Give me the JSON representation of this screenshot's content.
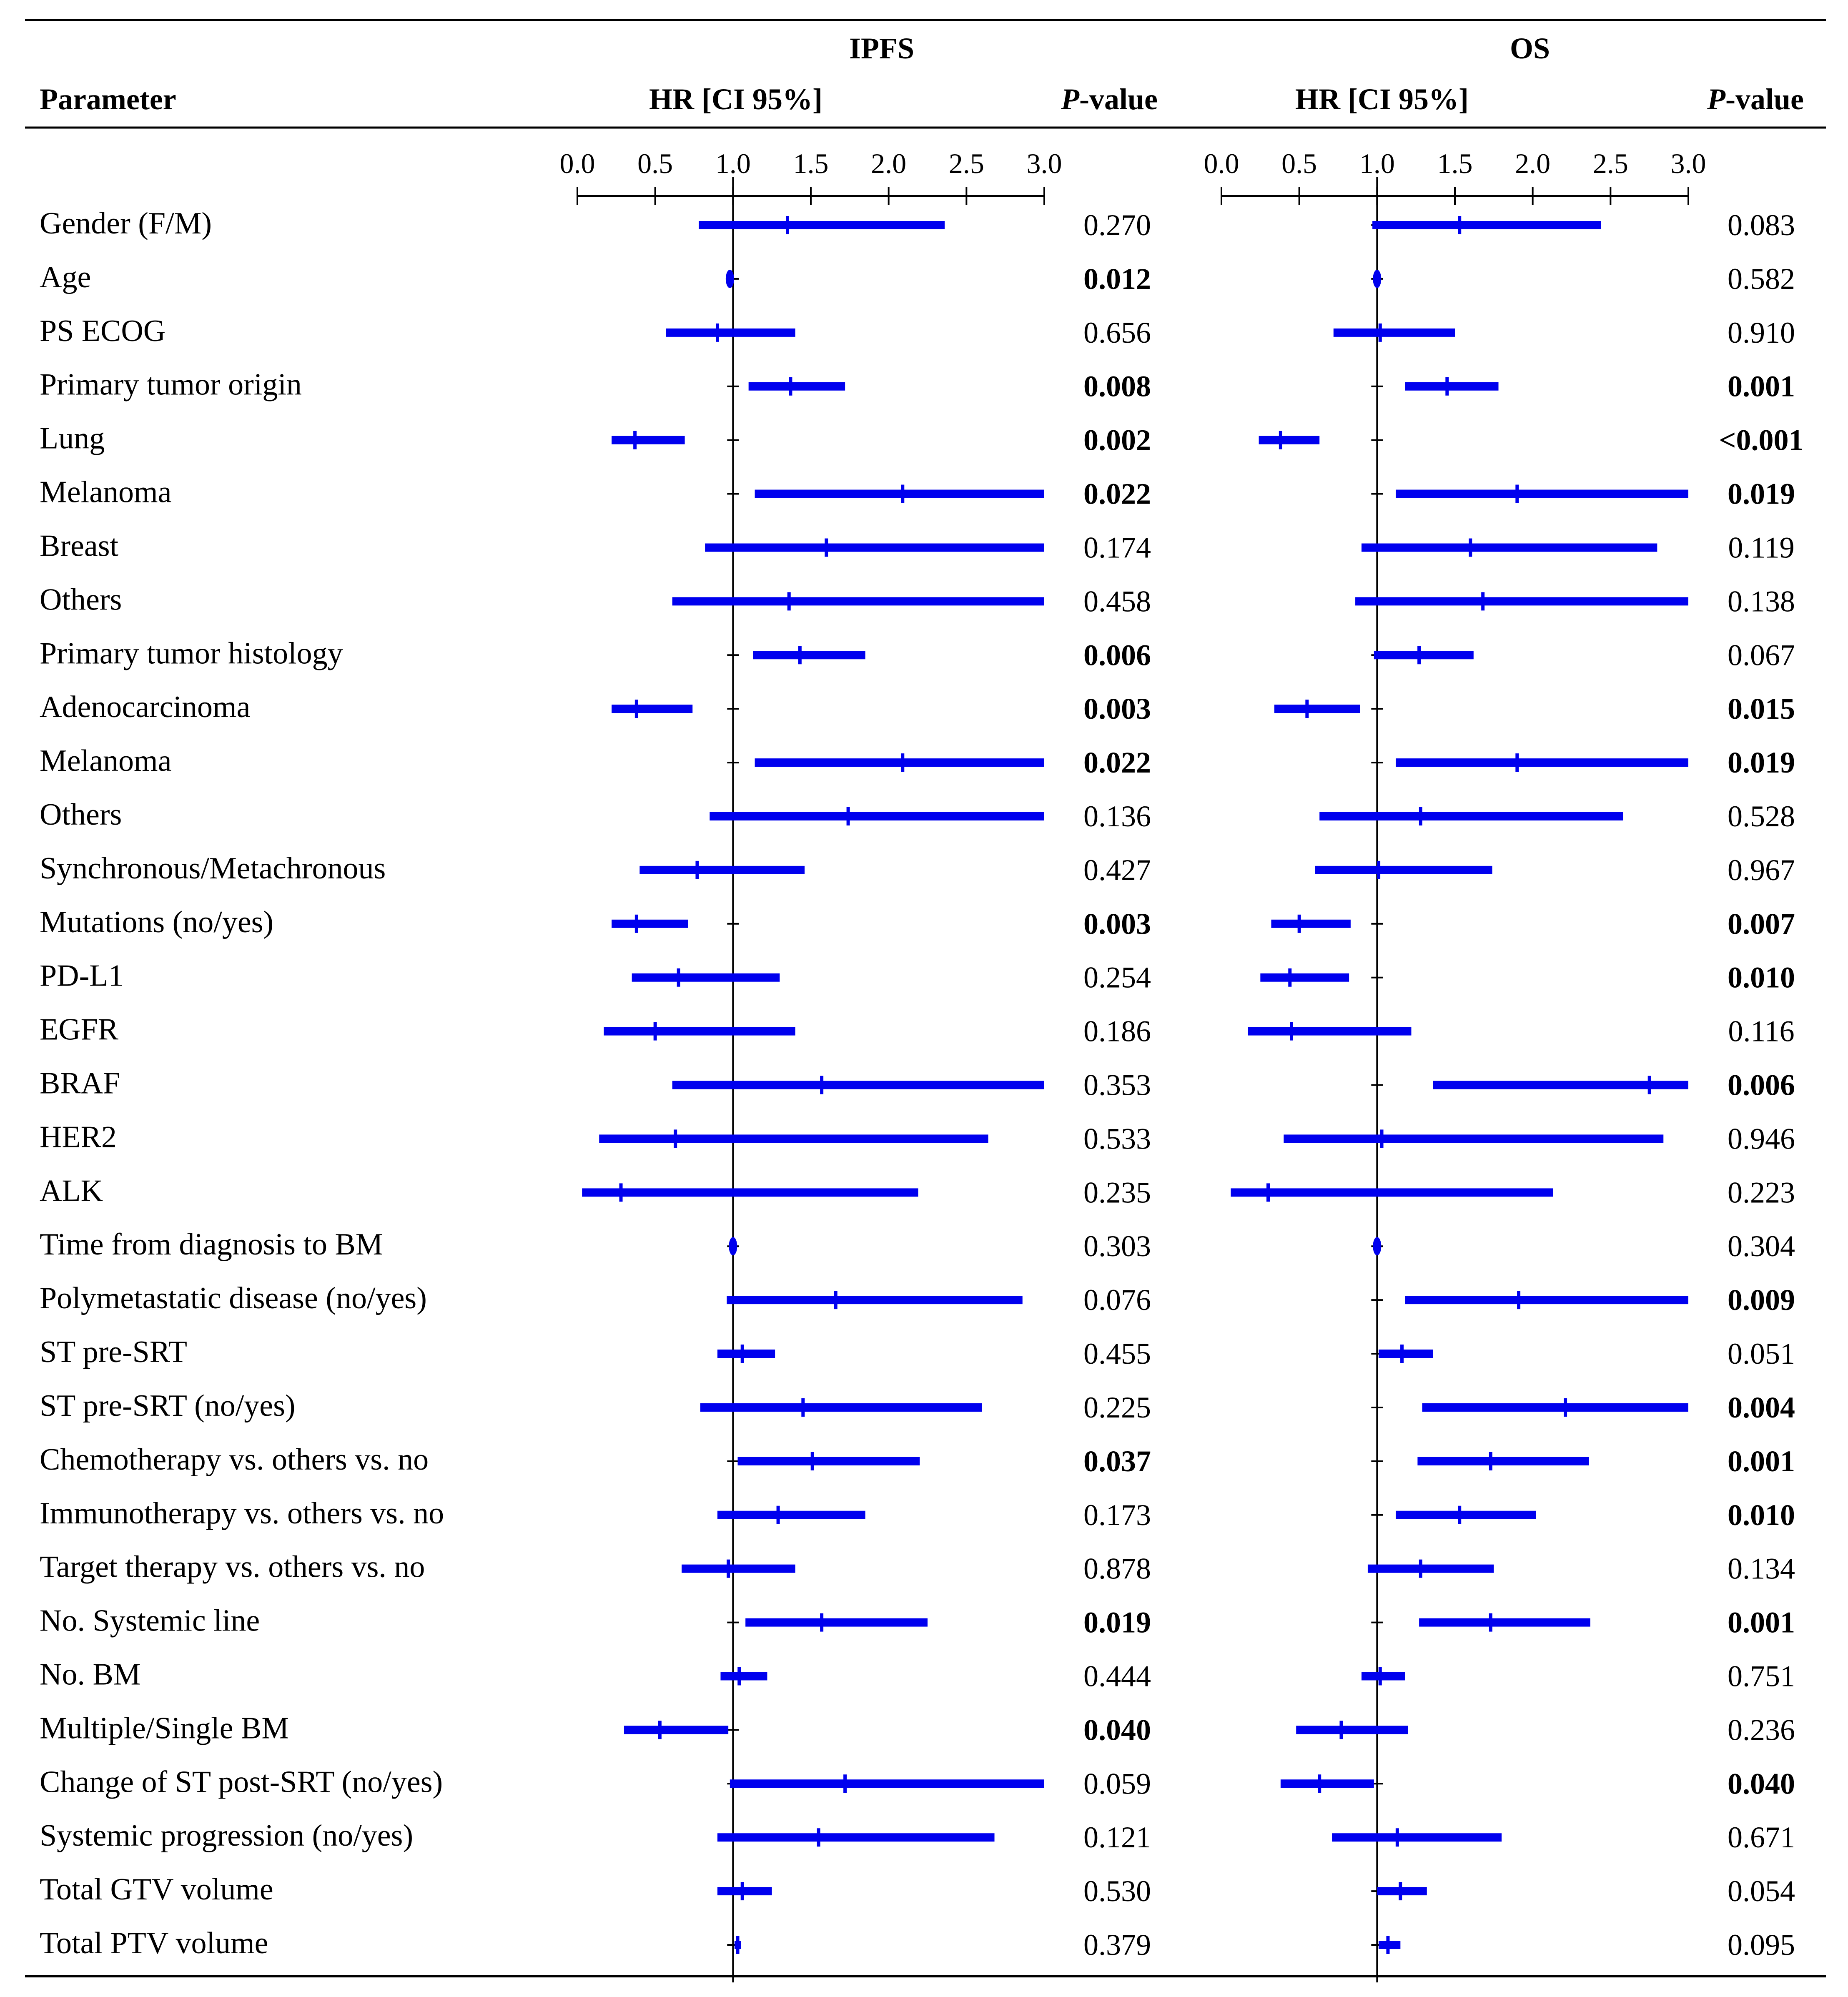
{
  "headers": {
    "parameter": "Parameter",
    "ipfs": "IPFS",
    "os": "OS",
    "hr_ci": "HR [CI 95%]",
    "p_italic": "P",
    "p_rest": "-value"
  },
  "colors": {
    "bar": "#0000ee",
    "axis": "#000000",
    "rule": "#000000"
  },
  "chart_data": {
    "type": "forest",
    "axis": {
      "min": 0.0,
      "max": 3.0,
      "ticks": [
        "0.0",
        "0.5",
        "1.0",
        "1.5",
        "2.0",
        "2.5",
        "3.0"
      ],
      "reference_line": 1.0
    },
    "panels": [
      "IPFS",
      "OS"
    ],
    "rows": [
      {
        "label": "Gender (F/M)",
        "ipfs": {
          "hr": 1.35,
          "lo": 0.78,
          "hi": 2.36,
          "p": "0.270",
          "bold": false
        },
        "os": {
          "hr": 1.53,
          "lo": 0.97,
          "hi": 2.44,
          "p": "0.083",
          "bold": false
        }
      },
      {
        "label": "Age",
        "ipfs": {
          "hr": 0.98,
          "lo": 0.97,
          "hi": 0.99,
          "p": "0.012",
          "bold": true
        },
        "os": {
          "hr": 1.0,
          "lo": 0.99,
          "hi": 1.01,
          "p": "0.582",
          "bold": false
        }
      },
      {
        "label": "PS ECOG",
        "ipfs": {
          "hr": 0.9,
          "lo": 0.57,
          "hi": 1.4,
          "p": "0.656",
          "bold": false
        },
        "os": {
          "hr": 1.02,
          "lo": 0.72,
          "hi": 1.5,
          "p": "0.910",
          "bold": false
        }
      },
      {
        "label": "Primary tumor origin",
        "ipfs": {
          "hr": 1.37,
          "lo": 1.1,
          "hi": 1.72,
          "p": "0.008",
          "bold": true
        },
        "os": {
          "hr": 1.45,
          "lo": 1.18,
          "hi": 1.78,
          "p": "0.001",
          "bold": true
        }
      },
      {
        "label": "Lung",
        "ipfs": {
          "hr": 0.37,
          "lo": 0.22,
          "hi": 0.69,
          "p": "0.002",
          "bold": true
        },
        "os": {
          "hr": 0.38,
          "lo": 0.24,
          "hi": 0.63,
          "p": "<0.001",
          "bold": true
        }
      },
      {
        "label": "Melanoma",
        "ipfs": {
          "hr": 2.09,
          "lo": 1.14,
          "hi": 3.0,
          "p": "0.022",
          "bold": true
        },
        "os": {
          "hr": 1.9,
          "lo": 1.12,
          "hi": 3.0,
          "p": "0.019",
          "bold": true
        }
      },
      {
        "label": "Breast",
        "ipfs": {
          "hr": 1.6,
          "lo": 0.82,
          "hi": 3.0,
          "p": "0.174",
          "bold": false
        },
        "os": {
          "hr": 1.6,
          "lo": 0.9,
          "hi": 2.8,
          "p": "0.119",
          "bold": false
        }
      },
      {
        "label": "Others",
        "ipfs": {
          "hr": 1.36,
          "lo": 0.61,
          "hi": 3.0,
          "p": "0.458",
          "bold": false
        },
        "os": {
          "hr": 1.68,
          "lo": 0.86,
          "hi": 3.0,
          "p": "0.138",
          "bold": false
        }
      },
      {
        "label": "Primary tumor histology",
        "ipfs": {
          "hr": 1.43,
          "lo": 1.13,
          "hi": 1.85,
          "p": "0.006",
          "bold": true
        },
        "os": {
          "hr": 1.27,
          "lo": 0.98,
          "hi": 1.62,
          "p": "0.067",
          "bold": false
        }
      },
      {
        "label": "Adenocarcinoma",
        "ipfs": {
          "hr": 0.38,
          "lo": 0.22,
          "hi": 0.74,
          "p": "0.003",
          "bold": true
        },
        "os": {
          "hr": 0.55,
          "lo": 0.34,
          "hi": 0.89,
          "p": "0.015",
          "bold": true
        }
      },
      {
        "label": "Melanoma",
        "ipfs": {
          "hr": 2.09,
          "lo": 1.14,
          "hi": 3.0,
          "p": "0.022",
          "bold": true
        },
        "os": {
          "hr": 1.9,
          "lo": 1.12,
          "hi": 3.0,
          "p": "0.019",
          "bold": true
        }
      },
      {
        "label": "Others",
        "ipfs": {
          "hr": 1.74,
          "lo": 0.85,
          "hi": 3.0,
          "p": "0.136",
          "bold": false
        },
        "os": {
          "hr": 1.28,
          "lo": 0.63,
          "hi": 2.58,
          "p": "0.528",
          "bold": false
        }
      },
      {
        "label": "Synchronous/Metachronous",
        "ipfs": {
          "hr": 0.77,
          "lo": 0.4,
          "hi": 1.46,
          "p": "0.427",
          "bold": false
        },
        "os": {
          "hr": 1.01,
          "lo": 0.6,
          "hi": 1.74,
          "p": "0.967",
          "bold": false
        }
      },
      {
        "label": "Mutations (no/yes)",
        "ipfs": {
          "hr": 0.38,
          "lo": 0.22,
          "hi": 0.71,
          "p": "0.003",
          "bold": true
        },
        "os": {
          "hr": 0.5,
          "lo": 0.32,
          "hi": 0.83,
          "p": "0.007",
          "bold": true
        }
      },
      {
        "label": "PD-L1",
        "ipfs": {
          "hr": 0.65,
          "lo": 0.35,
          "hi": 1.3,
          "p": "0.254",
          "bold": false
        },
        "os": {
          "hr": 0.44,
          "lo": 0.25,
          "hi": 0.82,
          "p": "0.010",
          "bold": true
        }
      },
      {
        "label": "EGFR",
        "ipfs": {
          "hr": 0.5,
          "lo": 0.17,
          "hi": 1.4,
          "p": "0.186",
          "bold": false
        },
        "os": {
          "hr": 0.45,
          "lo": 0.17,
          "hi": 1.22,
          "p": "0.116",
          "bold": false
        }
      },
      {
        "label": "BRAF",
        "ipfs": {
          "hr": 1.57,
          "lo": 0.61,
          "hi": 3.0,
          "p": "0.353",
          "bold": false
        },
        "os": {
          "hr": 2.75,
          "lo": 1.36,
          "hi": 3.0,
          "p": "0.006",
          "bold": true
        }
      },
      {
        "label": "HER2",
        "ipfs": {
          "hr": 0.63,
          "lo": 0.14,
          "hi": 2.64,
          "p": "0.533",
          "bold": false
        },
        "os": {
          "hr": 1.03,
          "lo": 0.4,
          "hi": 2.84,
          "p": "0.946",
          "bold": false
        }
      },
      {
        "label": "ALK",
        "ipfs": {
          "hr": 0.28,
          "lo": 0.03,
          "hi": 2.19,
          "p": "0.235",
          "bold": false
        },
        "os": {
          "hr": 0.3,
          "lo": 0.06,
          "hi": 2.13,
          "p": "0.223",
          "bold": false
        }
      },
      {
        "label": "Time from diagnosis to BM",
        "ipfs": {
          "hr": 1.0,
          "lo": 0.99,
          "hi": 1.01,
          "p": "0.303",
          "bold": false
        },
        "os": {
          "hr": 1.0,
          "lo": 0.99,
          "hi": 1.01,
          "p": "0.304",
          "bold": false
        }
      },
      {
        "label": "Polymetastatic disease (no/yes)",
        "ipfs": {
          "hr": 1.66,
          "lo": 0.96,
          "hi": 2.86,
          "p": "0.076",
          "bold": false
        },
        "os": {
          "hr": 1.91,
          "lo": 1.18,
          "hi": 3.0,
          "p": "0.009",
          "bold": true
        }
      },
      {
        "label": "ST pre-SRT",
        "ipfs": {
          "hr": 1.06,
          "lo": 0.9,
          "hi": 1.27,
          "p": "0.455",
          "bold": false
        },
        "os": {
          "hr": 1.16,
          "lo": 1.01,
          "hi": 1.36,
          "p": "0.051",
          "bold": false
        }
      },
      {
        "label": "ST pre-SRT (no/yes)",
        "ipfs": {
          "hr": 1.45,
          "lo": 0.79,
          "hi": 2.6,
          "p": "0.225",
          "bold": false
        },
        "os": {
          "hr": 2.21,
          "lo": 1.29,
          "hi": 3.0,
          "p": "0.004",
          "bold": true
        }
      },
      {
        "label": "Chemotherapy vs. others vs. no",
        "ipfs": {
          "hr": 1.51,
          "lo": 1.03,
          "hi": 2.2,
          "p": "0.037",
          "bold": true
        },
        "os": {
          "hr": 1.73,
          "lo": 1.26,
          "hi": 2.36,
          "p": "0.001",
          "bold": true
        }
      },
      {
        "label": "Immunotherapy vs. others vs. no",
        "ipfs": {
          "hr": 1.29,
          "lo": 0.9,
          "hi": 1.85,
          "p": "0.173",
          "bold": false
        },
        "os": {
          "hr": 1.53,
          "lo": 1.12,
          "hi": 2.02,
          "p": "0.010",
          "bold": true
        }
      },
      {
        "label": "Target therapy vs. others vs. no",
        "ipfs": {
          "hr": 0.97,
          "lo": 0.67,
          "hi": 1.4,
          "p": "0.878",
          "bold": false
        },
        "os": {
          "hr": 1.28,
          "lo": 0.94,
          "hi": 1.75,
          "p": "0.134",
          "bold": false
        }
      },
      {
        "label": "No. Systemic line",
        "ipfs": {
          "hr": 1.57,
          "lo": 1.08,
          "hi": 2.25,
          "p": "0.019",
          "bold": true
        },
        "os": {
          "hr": 1.73,
          "lo": 1.27,
          "hi": 2.37,
          "p": "0.001",
          "bold": true
        }
      },
      {
        "label": "No. BM",
        "ipfs": {
          "hr": 1.04,
          "lo": 0.92,
          "hi": 1.22,
          "p": "0.444",
          "bold": false
        },
        "os": {
          "hr": 1.02,
          "lo": 0.9,
          "hi": 1.18,
          "p": "0.751",
          "bold": false
        }
      },
      {
        "label": "Multiple/Single BM",
        "ipfs": {
          "hr": 0.53,
          "lo": 0.3,
          "hi": 0.97,
          "p": "0.040",
          "bold": true
        },
        "os": {
          "hr": 0.77,
          "lo": 0.48,
          "hi": 1.2,
          "p": "0.236",
          "bold": false
        }
      },
      {
        "label": "Change of ST post-SRT (no/yes)",
        "ipfs": {
          "hr": 1.72,
          "lo": 0.98,
          "hi": 3.0,
          "p": "0.059",
          "bold": false
        },
        "os": {
          "hr": 0.63,
          "lo": 0.38,
          "hi": 0.98,
          "p": "0.040",
          "bold": true
        }
      },
      {
        "label": "Systemic progression (no/yes)",
        "ipfs": {
          "hr": 1.55,
          "lo": 0.9,
          "hi": 2.68,
          "p": "0.121",
          "bold": false
        },
        "os": {
          "hr": 1.13,
          "lo": 0.71,
          "hi": 1.8,
          "p": "0.671",
          "bold": false
        }
      },
      {
        "label": "Total GTV volume",
        "ipfs": {
          "hr": 1.06,
          "lo": 0.9,
          "hi": 1.25,
          "p": "0.530",
          "bold": false
        },
        "os": {
          "hr": 1.15,
          "lo": 1.0,
          "hi": 1.32,
          "p": "0.054",
          "bold": false
        }
      },
      {
        "label": "Total PTV volume",
        "ipfs": {
          "hr": 1.03,
          "lo": 1.01,
          "hi": 1.05,
          "p": "0.379",
          "bold": false
        },
        "os": {
          "hr": 1.07,
          "lo": 1.01,
          "hi": 1.15,
          "p": "0.095",
          "bold": false
        }
      }
    ]
  }
}
